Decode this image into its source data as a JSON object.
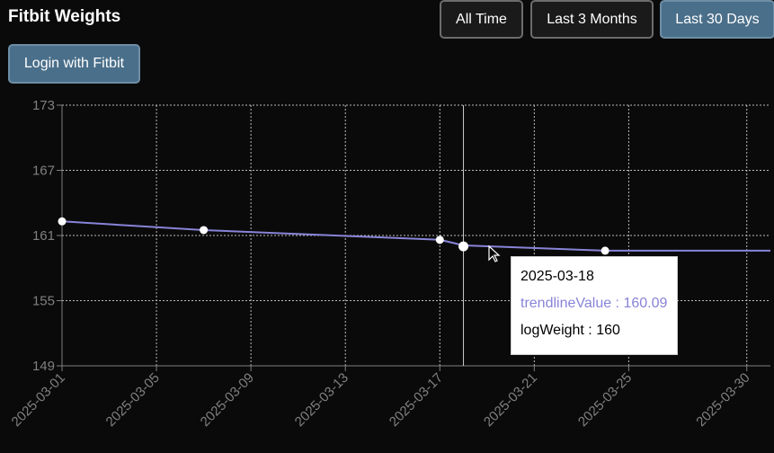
{
  "app": {
    "title": "Fitbit Weights"
  },
  "range_buttons": [
    {
      "label": "All Time",
      "active": false
    },
    {
      "label": "Last 3 Months",
      "active": false
    },
    {
      "label": "Last 30 Days",
      "active": true
    }
  ],
  "login": {
    "label": "Login with Fitbit"
  },
  "colors": {
    "trendline": "#8884d8",
    "point": "#ffffff",
    "grid": "#bbbbbb",
    "axis": "#808080"
  },
  "chart_data": {
    "type": "line",
    "title": "",
    "xlabel": "",
    "ylabel": "",
    "ylim": [
      149,
      173
    ],
    "xlim": [
      "2025-03-01",
      "2025-03-31"
    ],
    "y_ticks": [
      149,
      155,
      161,
      167,
      173
    ],
    "x_ticks": [
      "2025-03-01",
      "2025-03-05",
      "2025-03-09",
      "2025-03-13",
      "2025-03-17",
      "2025-03-21",
      "2025-03-25",
      "2025-03-30"
    ],
    "grid": true,
    "series": [
      {
        "key": "trendlineValue",
        "x": [
          "2025-03-01",
          "2025-03-07",
          "2025-03-17",
          "2025-03-18",
          "2025-03-24",
          "2025-03-31"
        ],
        "values": [
          162.3,
          161.5,
          160.6,
          160.09,
          159.6,
          159.6
        ]
      },
      {
        "key": "logWeight",
        "x": [
          "2025-03-01",
          "2025-03-07",
          "2025-03-17",
          "2025-03-18",
          "2025-03-24"
        ],
        "values": [
          162.3,
          161.5,
          160.6,
          160,
          159.6
        ]
      }
    ],
    "tooltip": {
      "date": "2025-03-18",
      "trend_text": "trendlineValue : 160.09",
      "weight_text": "logWeight : 160"
    }
  }
}
